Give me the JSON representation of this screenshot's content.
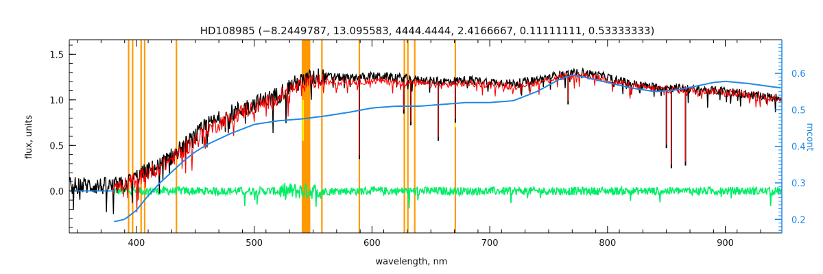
{
  "chart_data": {
    "type": "line",
    "title": "HD108985    (−8.2449787, 13.095583, 4444.4444, 2.4166667, 0.11111111, 0.53333333)",
    "xlabel": "wavelength, nm",
    "ylabel": "flux, units",
    "y2label": "mcont",
    "xlim": [
      343,
      948
    ],
    "ylim": [
      -0.46,
      1.66
    ],
    "y2lim": [
      0.163,
      0.692
    ],
    "x_ticks": [
      400,
      500,
      600,
      700,
      800,
      900
    ],
    "y_ticks": [
      "0.0",
      "0.5",
      "1.0",
      "1.5"
    ],
    "y2_ticks": [
      "0.2",
      "0.3",
      "0.4",
      "0.5",
      "0.6"
    ],
    "grid": false,
    "colors": {
      "observed": "#000000",
      "model": "#ff0000",
      "residual": "#00ee66",
      "continuum": "#1e88e5",
      "masks": "#ff9900",
      "highlight": "#ffff00"
    },
    "mask_lines": [
      393.4,
      396.8,
      404.0,
      407.0,
      434.0,
      541.0,
      542.0,
      543.0,
      544.0,
      545.0,
      546.0,
      547.0,
      557.5,
      589.3,
      627.5,
      630.5,
      636.3,
      670.8
    ],
    "series": [
      {
        "role": "observed",
        "x": [
          343,
          360,
          380,
          390,
          400,
          410,
          420,
          430,
          440,
          450,
          460,
          470,
          480,
          490,
          500,
          510,
          520,
          530,
          540,
          550,
          560,
          580,
          600,
          620,
          640,
          660,
          680,
          700,
          720,
          740,
          760,
          780,
          800,
          820,
          840,
          860,
          880,
          900,
          920,
          940,
          948
        ],
        "y": [
          0.06,
          0.06,
          0.05,
          0.07,
          0.15,
          0.22,
          0.28,
          0.38,
          0.48,
          0.6,
          0.72,
          0.78,
          0.85,
          0.9,
          0.95,
          1.0,
          1.05,
          1.15,
          1.2,
          1.25,
          1.26,
          1.24,
          1.26,
          1.25,
          1.22,
          1.2,
          1.22,
          1.2,
          1.18,
          1.22,
          1.28,
          1.3,
          1.25,
          1.18,
          1.14,
          1.13,
          1.11,
          1.1,
          1.06,
          1.03,
          1.02
        ]
      },
      {
        "role": "model",
        "x": [
          380,
          390,
          400,
          410,
          420,
          430,
          440,
          450,
          460,
          470,
          480,
          490,
          500,
          510,
          520,
          530,
          540,
          550,
          560,
          580,
          600,
          620,
          640,
          660,
          680,
          700,
          720,
          740,
          760,
          780,
          800,
          820,
          840,
          860,
          880,
          900,
          920,
          940,
          948
        ],
        "y": [
          0.04,
          0.06,
          0.13,
          0.2,
          0.26,
          0.35,
          0.45,
          0.56,
          0.67,
          0.74,
          0.81,
          0.87,
          0.92,
          0.97,
          1.02,
          1.1,
          1.16,
          1.2,
          1.2,
          1.2,
          1.21,
          1.2,
          1.18,
          1.16,
          1.18,
          1.17,
          1.15,
          1.19,
          1.25,
          1.27,
          1.22,
          1.16,
          1.12,
          1.11,
          1.1,
          1.09,
          1.05,
          1.02,
          1.01
        ]
      },
      {
        "role": "residual",
        "x": [
          380,
          948
        ],
        "y": [
          0.0,
          0.0
        ]
      },
      {
        "role": "continuum",
        "x": [
          381,
          390,
          400,
          410,
          420,
          430,
          440,
          450,
          460,
          480,
          500,
          520,
          540,
          560,
          580,
          600,
          620,
          640,
          660,
          680,
          700,
          720,
          740,
          760,
          770,
          780,
          800,
          820,
          840,
          860,
          880,
          890,
          900,
          920,
          940,
          948
        ],
        "y": [
          0.194,
          0.2,
          0.225,
          0.265,
          0.3,
          0.33,
          0.36,
          0.385,
          0.405,
          0.435,
          0.46,
          0.47,
          0.475,
          0.483,
          0.493,
          0.505,
          0.51,
          0.51,
          0.515,
          0.52,
          0.52,
          0.525,
          0.55,
          0.585,
          0.595,
          0.59,
          0.575,
          0.56,
          0.55,
          0.555,
          0.568,
          0.575,
          0.578,
          0.572,
          0.563,
          0.56
        ]
      }
    ],
    "absorption_lines": [
      {
        "x": 589.3,
        "y_min": 0.35
      },
      {
        "x": 656.3,
        "y_min": 0.55
      },
      {
        "x": 633.0,
        "y_min": 0.72
      },
      {
        "x": 627.0,
        "y_min": 0.85
      },
      {
        "x": 850.0,
        "y_min": 0.47
      },
      {
        "x": 854.2,
        "y_min": 0.25
      },
      {
        "x": 866.2,
        "y_min": 0.28
      },
      {
        "x": 766.5,
        "y_min": 0.95
      },
      {
        "x": 670.8,
        "y_min": 0.75
      }
    ]
  }
}
